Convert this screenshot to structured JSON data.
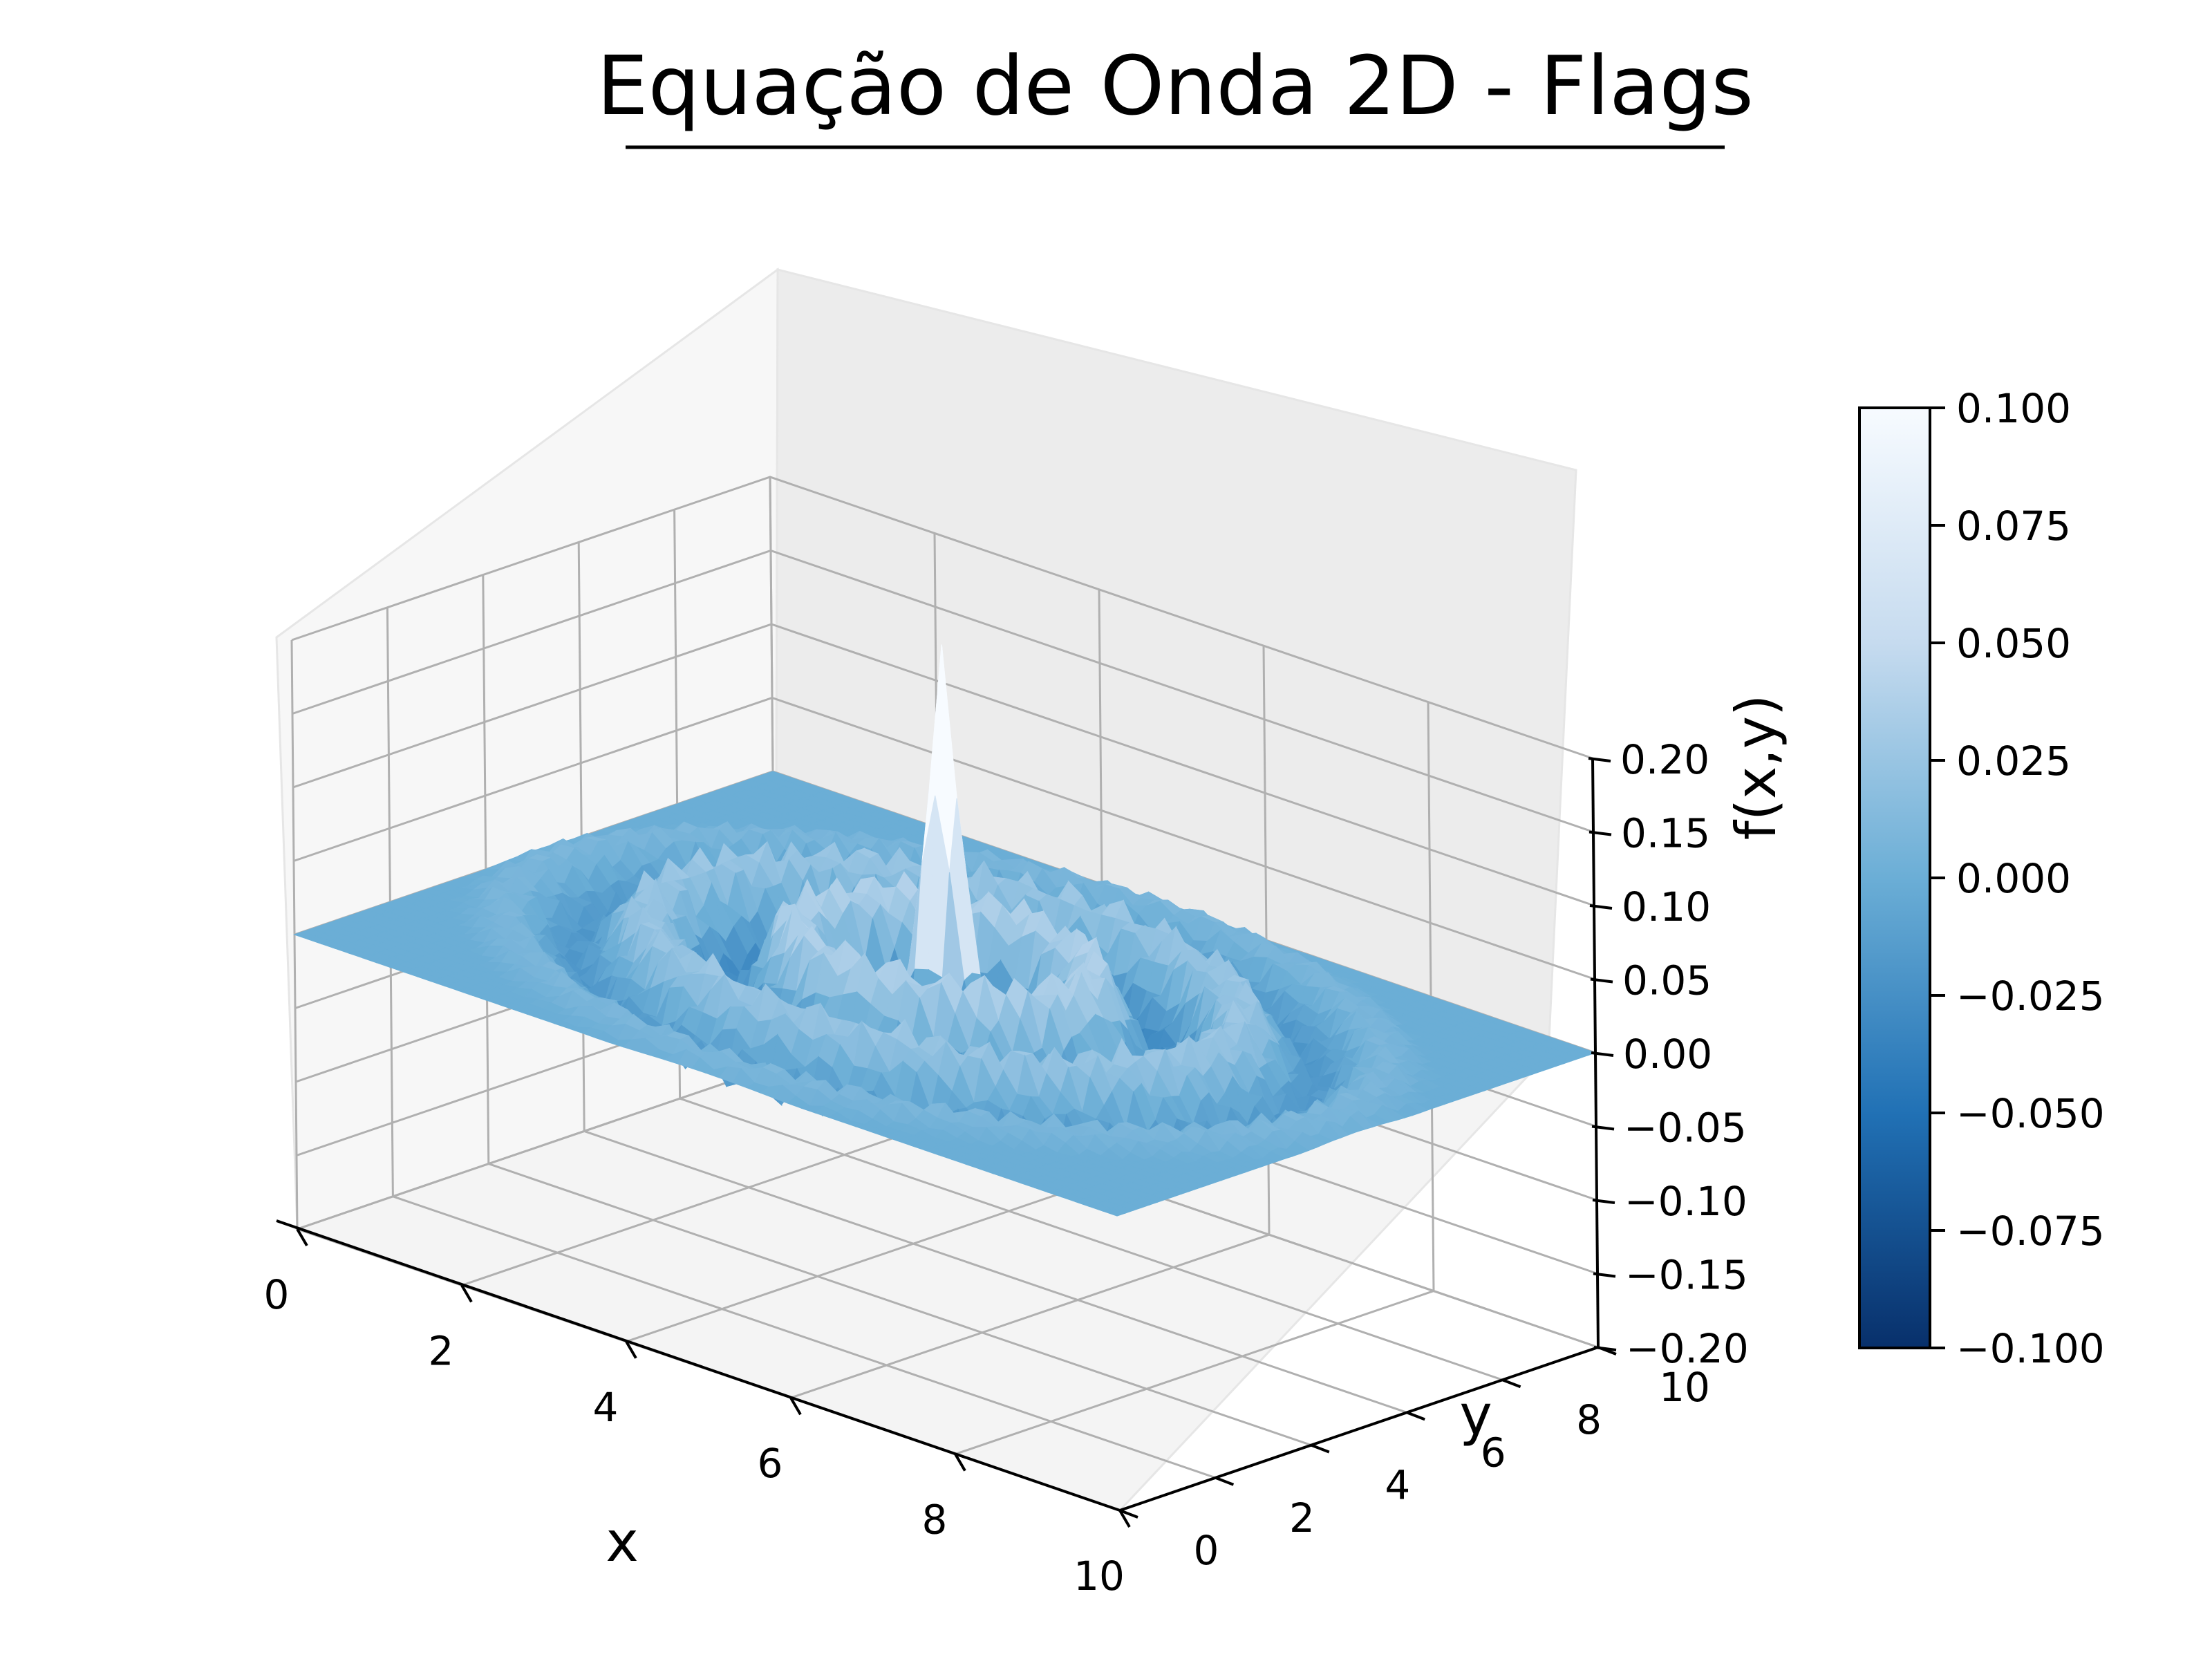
{
  "chart_data": {
    "type": "surface3d",
    "title": "Equação de Onda 2D - Flags",
    "xlabel": "x",
    "ylabel": "y",
    "zlabel": "f(x,y)",
    "xlim": [
      0,
      10
    ],
    "ylim": [
      0,
      10
    ],
    "zlim": [
      -0.2,
      0.2
    ],
    "x_ticks": [
      "0",
      "2",
      "4",
      "6",
      "8",
      "10"
    ],
    "y_ticks": [
      "0",
      "2",
      "4",
      "6",
      "8",
      "10"
    ],
    "z_ticks": [
      "−0.20",
      "−0.15",
      "−0.10",
      "−0.05",
      "0.00",
      "0.05",
      "0.10",
      "0.15",
      "0.20"
    ],
    "colorbar": {
      "colormap": "Blues_r",
      "range": [
        -0.1,
        0.1
      ],
      "ticks": [
        "−0.100",
        "−0.075",
        "−0.050",
        "−0.025",
        "0.000",
        "0.025",
        "0.050",
        "0.075",
        "0.100"
      ]
    },
    "surface": {
      "center": [
        5,
        5
      ],
      "peak_z": 0.17,
      "edge_z": 0.0,
      "domain": [
        [
          0,
          10
        ],
        [
          0,
          10
        ]
      ]
    },
    "grid": true,
    "colors": {
      "cmap_dark": "#08306b",
      "cmap_mid": "#6baed6",
      "cmap_light": "#f7fbff",
      "pane": "#f2f2f2",
      "gridline": "#b0b0b0"
    }
  }
}
